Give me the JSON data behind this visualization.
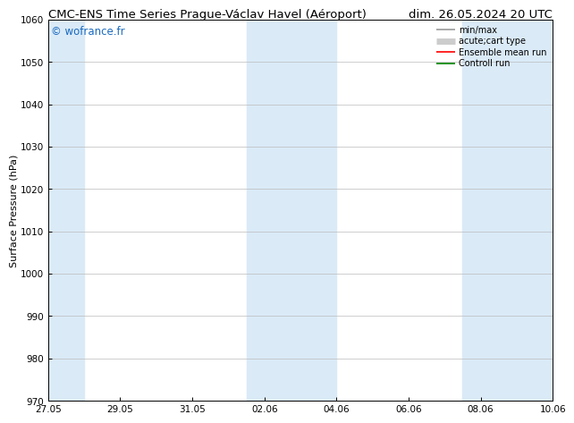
{
  "title_left": "CMC-ENS Time Series Prague-Václav Havel (Aéroport)",
  "title_right": "dim. 26.05.2024 20 UTC",
  "ylabel": "Surface Pressure (hPa)",
  "watermark": "© wofrance.fr",
  "watermark_color": "#1a6abf",
  "ylim": [
    970,
    1060
  ],
  "yticks": [
    970,
    980,
    990,
    1000,
    1010,
    1020,
    1030,
    1040,
    1050,
    1060
  ],
  "xtick_labels": [
    "27.05",
    "29.05",
    "31.05",
    "02.06",
    "04.06",
    "06.06",
    "08.06",
    "10.06"
  ],
  "xtick_positions": [
    0,
    2,
    4,
    6,
    8,
    10,
    12,
    14
  ],
  "x_total_days": 14,
  "shaded_bands": [
    {
      "start_day": 0,
      "end_day": 1
    },
    {
      "start_day": 5.5,
      "end_day": 8
    },
    {
      "start_day": 11.5,
      "end_day": 14
    }
  ],
  "shaded_color": "#daeaf7",
  "bg_color": "#ffffff",
  "grid_color": "#bbbbbb",
  "legend_entries": [
    {
      "label": "min/max",
      "color": "#999999",
      "linewidth": 1.2
    },
    {
      "label": "acute;cart type",
      "color": "#cccccc",
      "linewidth": 5
    },
    {
      "label": "Ensemble mean run",
      "color": "#ff0000",
      "linewidth": 1.2
    },
    {
      "label": "Controll run",
      "color": "#008000",
      "linewidth": 1.2
    }
  ],
  "title_fontsize": 9.5,
  "tick_fontsize": 7.5,
  "ylabel_fontsize": 8,
  "watermark_fontsize": 8.5,
  "legend_fontsize": 7
}
